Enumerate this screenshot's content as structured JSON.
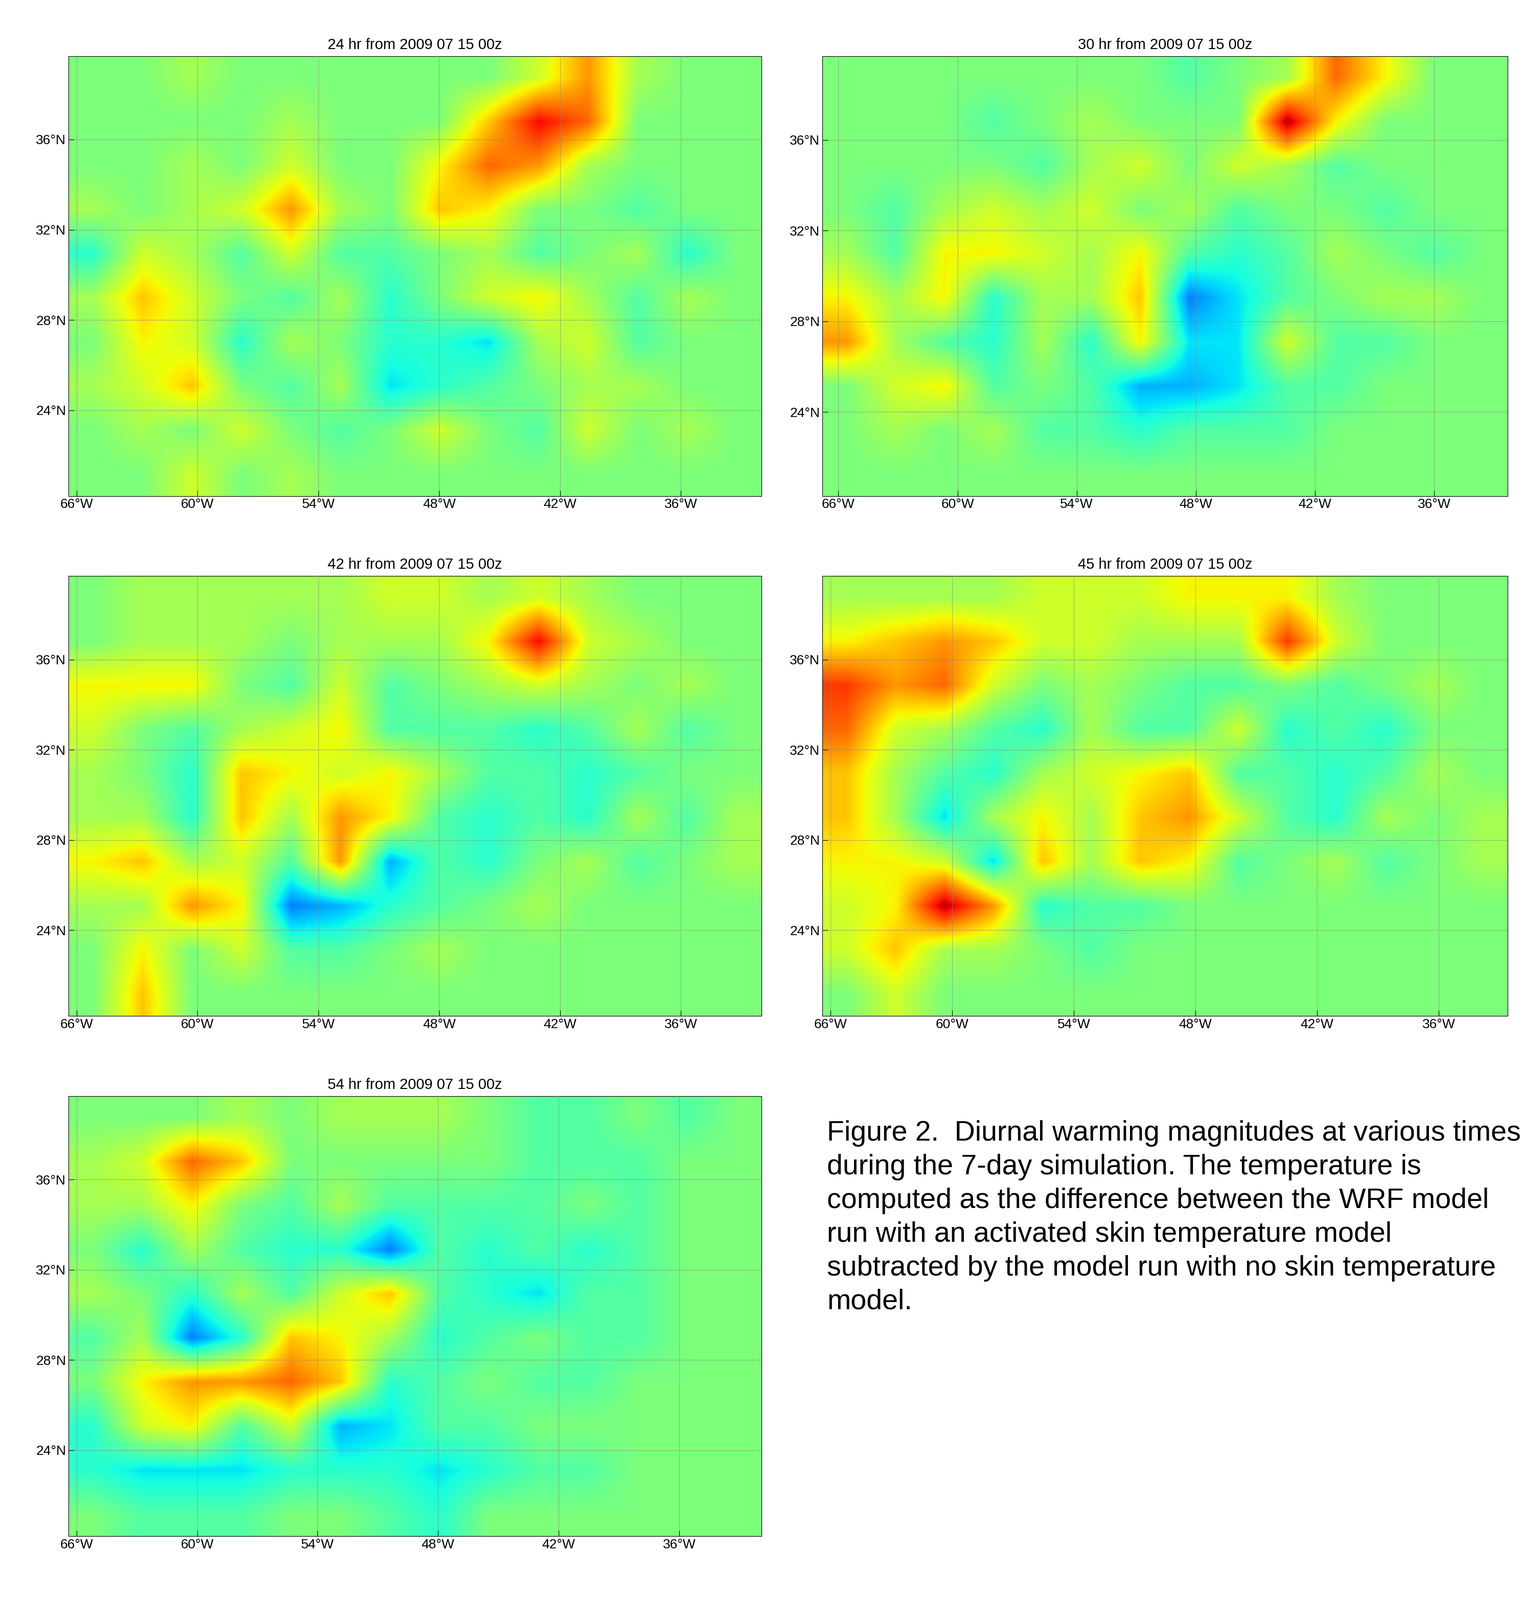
{
  "chart_data": [
    {
      "type": "heatmap",
      "title": "24 hr from 2009 07 15 00z",
      "color": "jet",
      "grid": true,
      "xlim": [
        -66.4,
        -32.0
      ],
      "ylim": [
        20.2,
        39.7
      ],
      "color_range": [
        -1,
        1
      ],
      "xticks": [
        {
          "value": -66,
          "label": "66°W"
        },
        {
          "value": -60,
          "label": "60°W"
        },
        {
          "value": -54,
          "label": "54°W"
        },
        {
          "value": -48,
          "label": "48°W"
        },
        {
          "value": -42,
          "label": "42°W"
        },
        {
          "value": -36,
          "label": "36°W"
        }
      ],
      "yticks": [
        {
          "value": 24,
          "label": "24°N"
        },
        {
          "value": 28,
          "label": "28°N"
        },
        {
          "value": 32,
          "label": "32°N"
        },
        {
          "value": 36,
          "label": "36°N"
        }
      ],
      "cells": [
        [
          0,
          0,
          0.1,
          0,
          0,
          0,
          0,
          0,
          0,
          0.2,
          0.5,
          0.1,
          0,
          0
        ],
        [
          0,
          0,
          0,
          0,
          0.1,
          0,
          0,
          0,
          0.4,
          0.8,
          0.6,
          0,
          0,
          0
        ],
        [
          0,
          0,
          0.1,
          0,
          0.2,
          0,
          0,
          0.3,
          0.6,
          0.5,
          0.1,
          0,
          0,
          0
        ],
        [
          0.1,
          0,
          0.1,
          0.2,
          0.5,
          0.1,
          0,
          0.4,
          0.3,
          0,
          0,
          -0.1,
          0,
          0
        ],
        [
          -0.2,
          0.2,
          0.1,
          -0.1,
          0.2,
          -0.1,
          -0.1,
          0,
          0.1,
          -0.1,
          0,
          0.1,
          -0.2,
          0
        ],
        [
          0.1,
          0.4,
          0.2,
          0,
          -0.1,
          0.1,
          -0.2,
          0,
          0.2,
          0.3,
          0.1,
          -0.1,
          0.1,
          0
        ],
        [
          0,
          0.3,
          0.2,
          -0.2,
          0.1,
          0,
          -0.2,
          -0.2,
          -0.3,
          0.1,
          0.2,
          -0.1,
          0,
          0
        ],
        [
          0.1,
          0.2,
          0.4,
          0,
          -0.1,
          0.1,
          -0.3,
          -0.2,
          -0.1,
          0,
          0.1,
          0.1,
          0,
          0
        ],
        [
          0,
          0.1,
          0,
          0.2,
          0,
          -0.1,
          0,
          0.2,
          0,
          -0.1,
          0.2,
          0,
          0.1,
          0
        ],
        [
          0,
          0,
          0.2,
          0,
          0.1,
          0,
          0,
          0,
          0,
          0,
          0,
          0,
          0,
          0
        ]
      ]
    },
    {
      "type": "heatmap",
      "title": "30 hr from 2009 07 15 00z",
      "color": "jet",
      "grid": true,
      "xlim": [
        -66.8,
        -32.3
      ],
      "ylim": [
        20.3,
        39.7
      ],
      "color_range": [
        -1,
        1
      ],
      "xticks": [
        {
          "value": -66,
          "label": "66°W"
        },
        {
          "value": -60,
          "label": "60°W"
        },
        {
          "value": -54,
          "label": "54°W"
        },
        {
          "value": -48,
          "label": "48°W"
        },
        {
          "value": -42,
          "label": "42°W"
        },
        {
          "value": -36,
          "label": "36°W"
        }
      ],
      "yticks": [
        {
          "value": 24,
          "label": "24°N"
        },
        {
          "value": 28,
          "label": "28°N"
        },
        {
          "value": 32,
          "label": "32°N"
        },
        {
          "value": 36,
          "label": "36°N"
        }
      ],
      "cells": [
        [
          0,
          0,
          0,
          0,
          0,
          0,
          0,
          -0.1,
          0,
          0.1,
          0.6,
          0.3,
          0,
          0
        ],
        [
          0,
          0,
          0,
          -0.1,
          0,
          0.1,
          0,
          0,
          0,
          0.9,
          0.3,
          0,
          0,
          0
        ],
        [
          0,
          0,
          0,
          0,
          -0.1,
          0.1,
          0.2,
          0,
          0.2,
          0.1,
          -0.1,
          0,
          0,
          0
        ],
        [
          0,
          -0.1,
          0.1,
          0.2,
          0.1,
          0.2,
          0,
          0.1,
          -0.1,
          0,
          0,
          -0.1,
          0,
          0
        ],
        [
          0.1,
          -0.1,
          0.3,
          0.3,
          0.2,
          0.1,
          0.3,
          -0.1,
          -0.2,
          -0.1,
          0.1,
          0,
          -0.1,
          0
        ],
        [
          0.3,
          0.1,
          0.3,
          -0.2,
          0.1,
          0.1,
          0.4,
          -0.5,
          -0.3,
          -0.1,
          0,
          0.1,
          0.1,
          0
        ],
        [
          0.5,
          0.1,
          -0.1,
          -0.2,
          0.1,
          -0.2,
          0.3,
          -0.3,
          -0.3,
          0.2,
          -0.1,
          -0.1,
          0,
          0
        ],
        [
          0,
          0.2,
          0.3,
          -0.1,
          0,
          -0.1,
          -0.4,
          -0.4,
          -0.3,
          -0.1,
          -0.1,
          0,
          0,
          0
        ],
        [
          0,
          0.1,
          0,
          0.1,
          -0.1,
          -0.1,
          -0.2,
          -0.1,
          -0.1,
          -0.1,
          0,
          0,
          0,
          0
        ],
        [
          0,
          0,
          0,
          0,
          0,
          0,
          0,
          0,
          0,
          0,
          0,
          0,
          0,
          0
        ]
      ]
    },
    {
      "type": "heatmap",
      "title": "42 hr from 2009 07 15 00z",
      "color": "jet",
      "grid": true,
      "xlim": [
        -66.4,
        -32.0
      ],
      "ylim": [
        20.2,
        39.7
      ],
      "color_range": [
        -1,
        1
      ],
      "xticks": [
        {
          "value": -66,
          "label": "66°W"
        },
        {
          "value": -60,
          "label": "60°W"
        },
        {
          "value": -54,
          "label": "54°W"
        },
        {
          "value": -48,
          "label": "48°W"
        },
        {
          "value": -42,
          "label": "42°W"
        },
        {
          "value": -36,
          "label": "36°W"
        }
      ],
      "yticks": [
        {
          "value": 24,
          "label": "24°N"
        },
        {
          "value": 28,
          "label": "28°N"
        },
        {
          "value": 32,
          "label": "32°N"
        },
        {
          "value": 36,
          "label": "36°N"
        }
      ],
      "cells": [
        [
          0,
          0.1,
          0.1,
          0.1,
          0.1,
          0.1,
          0.2,
          0.2,
          0.1,
          0.2,
          0.1,
          0,
          0,
          0
        ],
        [
          0,
          0.1,
          0.1,
          0.1,
          0,
          0.1,
          0.1,
          0.1,
          0.3,
          0.8,
          0.2,
          0.1,
          0,
          0
        ],
        [
          0.3,
          0.3,
          0.3,
          0,
          -0.1,
          0.2,
          -0.1,
          0,
          0.1,
          0.2,
          0.1,
          0,
          0.1,
          0
        ],
        [
          0.2,
          0,
          -0.1,
          0.1,
          0.2,
          0.3,
          -0.1,
          -0.1,
          -0.1,
          -0.2,
          -0.1,
          0.1,
          -0.1,
          0
        ],
        [
          0.1,
          0,
          -0.2,
          0.4,
          0.3,
          0.2,
          0.3,
          0.1,
          -0.1,
          -0.1,
          -0.2,
          -0.1,
          0,
          0
        ],
        [
          0.1,
          0.1,
          -0.2,
          0.4,
          0.1,
          0.5,
          0.3,
          -0.1,
          -0.2,
          -0.1,
          -0.2,
          0.1,
          -0.1,
          0.1
        ],
        [
          0.3,
          0.4,
          0.1,
          0.2,
          -0.1,
          0.5,
          -0.4,
          -0.1,
          -0.2,
          0,
          0.1,
          -0.1,
          0,
          0.1
        ],
        [
          0.1,
          0.1,
          0.5,
          0.3,
          -0.5,
          -0.4,
          -0.2,
          -0.1,
          0,
          0.1,
          0,
          0,
          0,
          0
        ],
        [
          0,
          0.3,
          0,
          0.2,
          -0.1,
          -0.1,
          0,
          0.1,
          0,
          0,
          0,
          0,
          0,
          0
        ],
        [
          0,
          0.4,
          0,
          0,
          0,
          0,
          0,
          0,
          0,
          0,
          0,
          0,
          0,
          0
        ]
      ]
    },
    {
      "type": "heatmap",
      "title": "45 hr from 2009 07 15 00z",
      "color": "jet",
      "grid": true,
      "xlim": [
        -66.4,
        -32.6
      ],
      "ylim": [
        20.2,
        39.7
      ],
      "color_range": [
        -1,
        1
      ],
      "xticks": [
        {
          "value": -66,
          "label": "66°W"
        },
        {
          "value": -60,
          "label": "60°W"
        },
        {
          "value": -54,
          "label": "54°W"
        },
        {
          "value": -48,
          "label": "48°W"
        },
        {
          "value": -42,
          "label": "42°W"
        },
        {
          "value": -36,
          "label": "36°W"
        }
      ],
      "yticks": [
        {
          "value": 24,
          "label": "24°N"
        },
        {
          "value": 28,
          "label": "28°N"
        },
        {
          "value": 32,
          "label": "32°N"
        },
        {
          "value": 36,
          "label": "36°N"
        }
      ],
      "cells": [
        [
          0.1,
          0.1,
          0.1,
          0.1,
          0.2,
          0.2,
          0.2,
          0.3,
          0.3,
          0.3,
          0.1,
          0,
          0,
          0
        ],
        [
          0.3,
          0.4,
          0.5,
          0.4,
          0.2,
          0.2,
          0.1,
          0.1,
          0.1,
          0.7,
          0.2,
          0,
          0,
          0
        ],
        [
          0.7,
          0.5,
          0.6,
          0.2,
          0,
          0.1,
          0,
          -0.1,
          -0.1,
          0,
          -0.1,
          0,
          0.1,
          0
        ],
        [
          0.6,
          0.2,
          0.1,
          -0.1,
          -0.2,
          0.1,
          -0.1,
          -0.1,
          0.2,
          -0.2,
          -0.1,
          -0.2,
          0,
          0
        ],
        [
          0.4,
          0.1,
          -0.1,
          -0.2,
          0.1,
          0.2,
          0.3,
          0.4,
          -0.1,
          -0.1,
          -0.2,
          -0.1,
          0.1,
          0
        ],
        [
          0.4,
          0.1,
          -0.3,
          0.1,
          0.3,
          0.1,
          0.4,
          0.5,
          0.2,
          -0.1,
          -0.2,
          0.1,
          0,
          0.1
        ],
        [
          0.3,
          0.3,
          0.2,
          -0.3,
          0.4,
          0.1,
          0.4,
          0.3,
          -0.1,
          0,
          0.1,
          -0.1,
          0,
          0.1
        ],
        [
          0.2,
          0.3,
          0.9,
          0.5,
          -0.2,
          -0.1,
          -0.1,
          0,
          0,
          0,
          0,
          0,
          0,
          0
        ],
        [
          0.2,
          0.4,
          0.1,
          0.1,
          0,
          -0.1,
          0,
          0,
          0,
          0,
          0,
          0,
          0,
          0
        ],
        [
          0,
          0.2,
          0,
          0,
          0,
          0,
          0,
          0,
          0,
          0,
          0,
          0,
          0,
          0
        ]
      ]
    },
    {
      "type": "heatmap",
      "title": "54 hr from 2009 07 15 00z",
      "color": "jet",
      "grid": true,
      "xlim": [
        -66.4,
        -31.9
      ],
      "ylim": [
        20.2,
        39.7
      ],
      "color_range": [
        -1,
        1
      ],
      "xticks": [
        {
          "value": -66,
          "label": "66°W"
        },
        {
          "value": -60,
          "label": "60°W"
        },
        {
          "value": -54,
          "label": "54°W"
        },
        {
          "value": -48,
          "label": "48°W"
        },
        {
          "value": -42,
          "label": "42°W"
        },
        {
          "value": -36,
          "label": "36°W"
        }
      ],
      "yticks": [
        {
          "value": 24,
          "label": "24°N"
        },
        {
          "value": 28,
          "label": "28°N"
        },
        {
          "value": 32,
          "label": "32°N"
        },
        {
          "value": 36,
          "label": "36°N"
        }
      ],
      "cells": [
        [
          0,
          0,
          0,
          0.1,
          0,
          0.1,
          0.1,
          0.1,
          0,
          -0.1,
          -0.1,
          0,
          -0.1,
          0
        ],
        [
          0.1,
          0.2,
          0.6,
          0.4,
          0,
          0,
          0,
          0,
          0,
          -0.1,
          -0.1,
          -0.1,
          0,
          0
        ],
        [
          0.1,
          0.1,
          0.3,
          0,
          -0.1,
          0.1,
          -0.1,
          -0.1,
          -0.1,
          -0.1,
          0,
          -0.1,
          0,
          0
        ],
        [
          0,
          -0.2,
          0.1,
          -0.1,
          -0.2,
          -0.2,
          -0.5,
          -0.1,
          -0.2,
          -0.1,
          -0.2,
          -0.1,
          0,
          0
        ],
        [
          0.1,
          0,
          -0.2,
          0.1,
          -0.1,
          0.2,
          0.4,
          -0.1,
          -0.2,
          -0.3,
          -0.1,
          -0.1,
          0,
          0
        ],
        [
          -0.1,
          0.1,
          -0.5,
          -0.2,
          0.4,
          0.3,
          0.1,
          -0.2,
          -0.1,
          0,
          -0.1,
          -0.1,
          0,
          0
        ],
        [
          0,
          0.3,
          0.5,
          0.5,
          0.6,
          0.4,
          -0.2,
          -0.1,
          0,
          -0.1,
          -0.1,
          0,
          0,
          0
        ],
        [
          -0.2,
          0.2,
          0.3,
          -0.1,
          0.2,
          -0.4,
          -0.3,
          -0.1,
          -0.1,
          0,
          0,
          0,
          0,
          0
        ],
        [
          -0.2,
          -0.3,
          -0.3,
          -0.3,
          -0.2,
          -0.2,
          -0.2,
          -0.3,
          -0.2,
          -0.1,
          -0.1,
          0,
          0,
          0
        ],
        [
          0,
          -0.1,
          -0.1,
          -0.1,
          0,
          0,
          -0.1,
          -0.2,
          0,
          0,
          0,
          0,
          0,
          0
        ]
      ]
    }
  ],
  "caption": "Figure 2.  Diurnal warming magnitudes at various times during the 7-day simulation. The temperature is computed as the difference between the WRF model run with an activated skin temperature model subtracted by the model run with no skin temperature model."
}
